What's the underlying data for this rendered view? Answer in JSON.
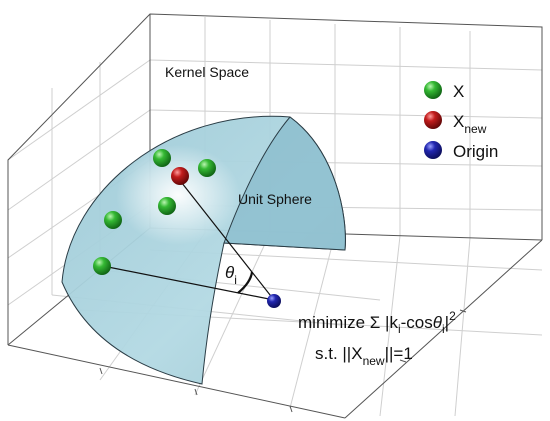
{
  "labels": {
    "space": "Kernel Space",
    "sphere": "Unit Sphere",
    "theta": "θ",
    "theta_sub": "i"
  },
  "legend": {
    "x": {
      "text": "X",
      "color": "#2aa52a"
    },
    "xnew": {
      "text": "X",
      "sub": "new",
      "color": "#b01818"
    },
    "origin": {
      "text": "Origin",
      "color": "#1c1f9a"
    }
  },
  "equation": {
    "line1_a": "minimize ",
    "sigma": "Σ",
    "line1_b": " |k",
    "line1_b_sub": "i",
    "line1_c": "-cos",
    "line1_theta": "θ",
    "line1_c_sub": "i",
    "line1_d": "|",
    "line1_exp": "2",
    "line2_a": "s.t. ||X",
    "line2_sub": "new",
    "line2_b": "||=1"
  },
  "colors": {
    "sphere_fill": "#a9d3df",
    "sphere_edge": "#2a3c45",
    "grid": "#cfcfcf",
    "frame": "#555555",
    "glow": "#ffffff"
  }
}
